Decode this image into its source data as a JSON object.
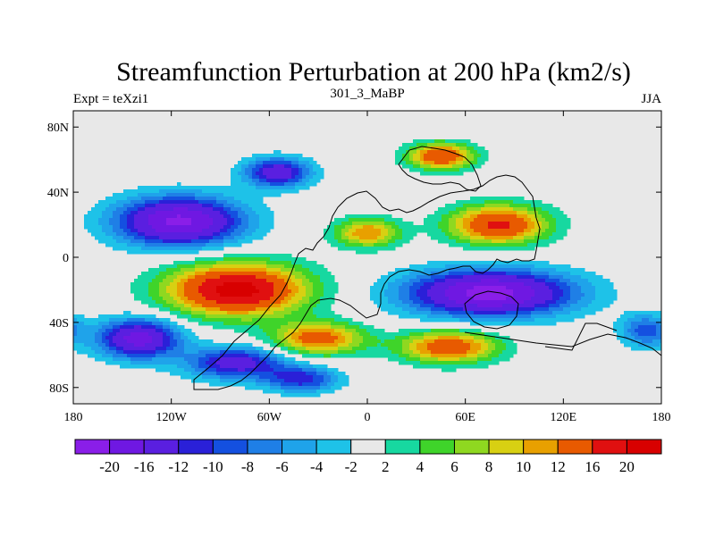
{
  "chart_data": {
    "type": "heatmap",
    "title": "Streamfunction Perturbation at 200 hPa (km2/s)",
    "left_string": "Expt = teXzi1",
    "center_string": "301_3_MaBP",
    "right_string": "JJA",
    "xlim": [
      -180,
      180
    ],
    "ylim": [
      -90,
      90
    ],
    "x_ticks": [
      {
        "value": -180,
        "label": "180"
      },
      {
        "value": -120,
        "label": "120W"
      },
      {
        "value": -60,
        "label": "60W"
      },
      {
        "value": 0,
        "label": "0"
      },
      {
        "value": 60,
        "label": "60E"
      },
      {
        "value": 120,
        "label": "120E"
      },
      {
        "value": 180,
        "label": "180"
      }
    ],
    "y_ticks": [
      {
        "value": 80,
        "label": "80N"
      },
      {
        "value": 40,
        "label": "40N"
      },
      {
        "value": 0,
        "label": "0"
      },
      {
        "value": -40,
        "label": "40S"
      },
      {
        "value": -80,
        "label": "80S"
      }
    ],
    "contour_levels": [
      -20,
      -16,
      -12,
      -10,
      -8,
      -6,
      -4,
      -2,
      2,
      4,
      6,
      8,
      10,
      12,
      16,
      20
    ],
    "colorbar_labels": [
      "-20",
      "-16",
      "-12",
      "-10",
      "-8",
      "-6",
      "-4",
      "-2",
      "2",
      "4",
      "6",
      "8",
      "10",
      "12",
      "16",
      "20"
    ],
    "colors": [
      "#8a1ee8",
      "#6f18e2",
      "#5a1fe0",
      "#2a20d8",
      "#1450e0",
      "#1f7fe6",
      "#1fa3ea",
      "#1ec2e8",
      "#e8e8e8",
      "#17d8a0",
      "#3fd42a",
      "#8fd820",
      "#d8d012",
      "#e8a000",
      "#e85a00",
      "#e01010",
      "#d80000"
    ],
    "field_features": [
      {
        "lon": -80,
        "lat": -20,
        "value": 22,
        "lon_radius": 42,
        "lat_radius": 16
      },
      {
        "lon": -30,
        "lat": -50,
        "value": 14,
        "lon_radius": 28,
        "lat_radius": 10
      },
      {
        "lon": 50,
        "lat": -55,
        "value": 15,
        "lon_radius": 30,
        "lat_radius": 10
      },
      {
        "lon": 80,
        "lat": 20,
        "value": 17,
        "lon_radius": 30,
        "lat_radius": 12
      },
      {
        "lon": 0,
        "lat": 15,
        "value": 12,
        "lon_radius": 20,
        "lat_radius": 9
      },
      {
        "lon": 45,
        "lat": 62,
        "value": 16,
        "lon_radius": 20,
        "lat_radius": 8
      },
      {
        "lon": -115,
        "lat": 22,
        "value": -21,
        "lon_radius": 38,
        "lat_radius": 15
      },
      {
        "lon": -55,
        "lat": 52,
        "value": -15,
        "lon_radius": 20,
        "lat_radius": 9
      },
      {
        "lon": 75,
        "lat": -22,
        "value": -22,
        "lon_radius": 50,
        "lat_radius": 14
      },
      {
        "lon": -140,
        "lat": -50,
        "value": -18,
        "lon_radius": 25,
        "lat_radius": 12
      },
      {
        "lon": -80,
        "lat": -65,
        "value": -14,
        "lon_radius": 30,
        "lat_radius": 10
      },
      {
        "lon": -40,
        "lat": -75,
        "value": -11,
        "lon_radius": 22,
        "lat_radius": 8
      },
      {
        "lon": 170,
        "lat": -45,
        "value": -9,
        "lon_radius": 15,
        "lat_radius": 10
      }
    ]
  }
}
